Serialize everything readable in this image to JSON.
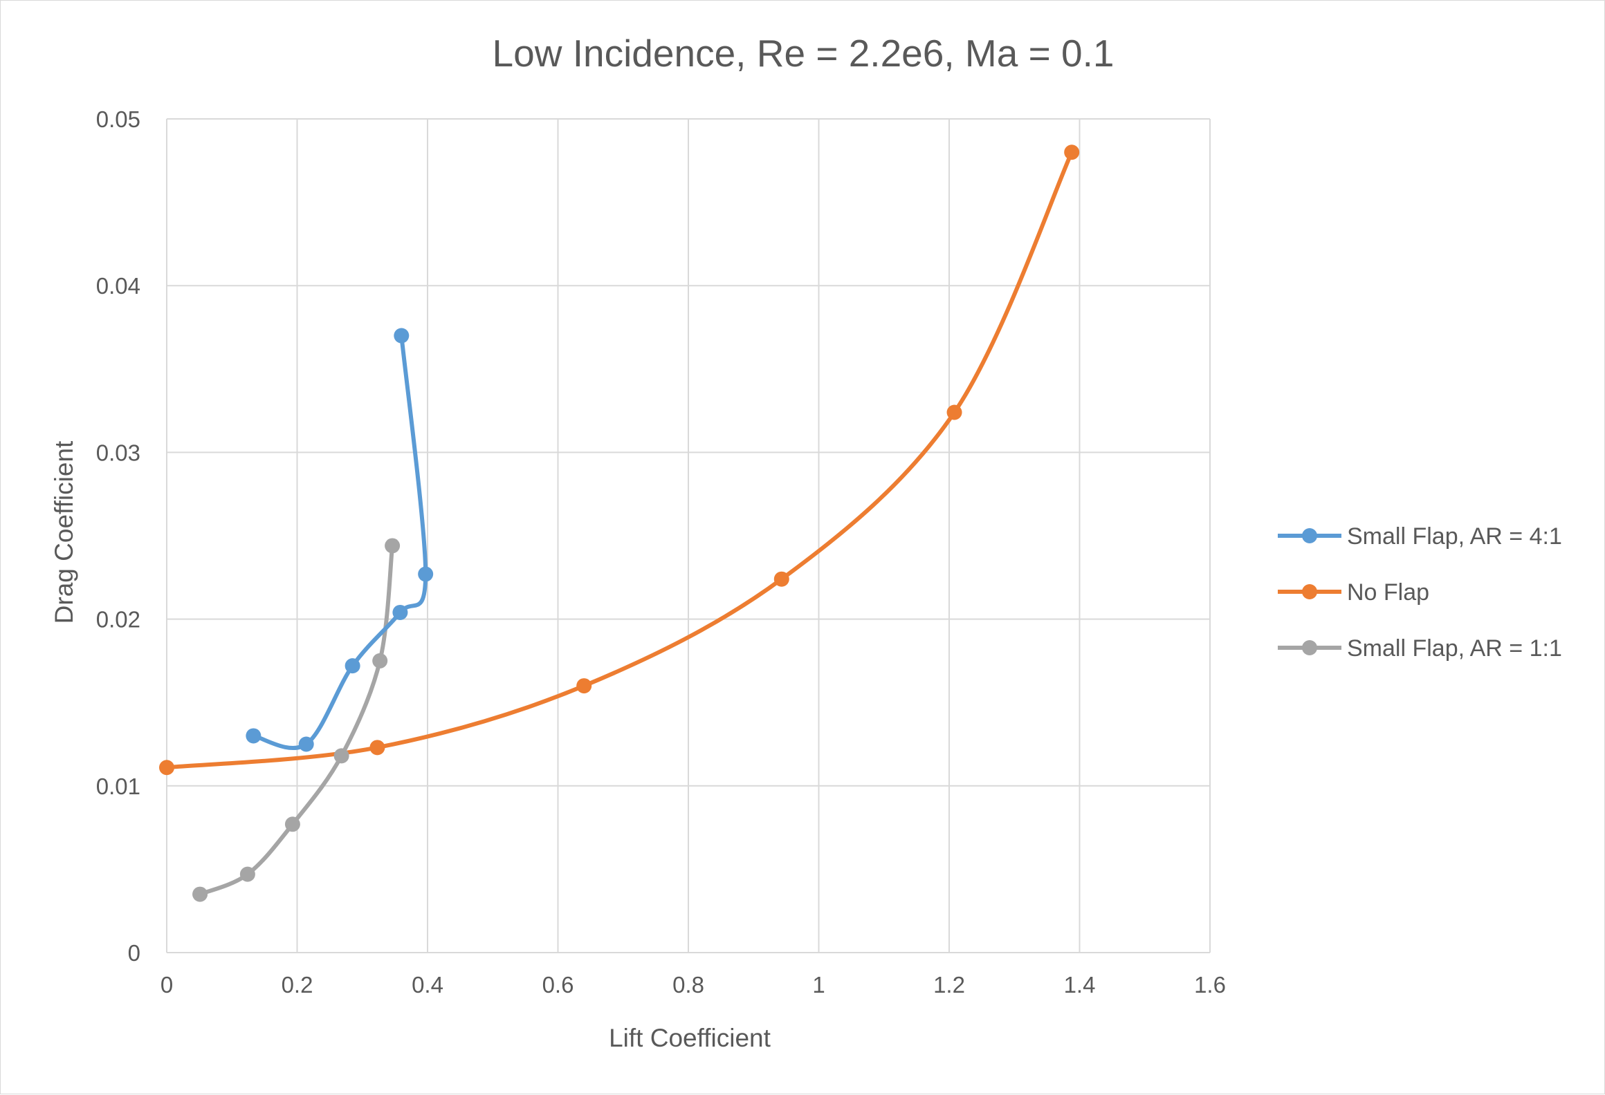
{
  "chart_data": {
    "type": "scatter",
    "title": "Low Incidence, Re = 2.2e6, Ma = 0.1",
    "xlabel": "Lift Coefficient",
    "ylabel": "Drag Coefficient",
    "xlim": [
      0,
      1.6
    ],
    "ylim": [
      0,
      0.05
    ],
    "x_ticks": [
      "0",
      "0.2",
      "0.4",
      "0.6",
      "0.8",
      "1",
      "1.2",
      "1.4",
      "1.6"
    ],
    "y_ticks": [
      "0",
      "0.01",
      "0.02",
      "0.03",
      "0.04",
      "0.05"
    ],
    "grid": true,
    "legend_position": "right",
    "smoothed_lines": true,
    "series": [
      {
        "name": "Small Flap, AR = 4:1",
        "color": "#5b9bd5",
        "points": [
          {
            "x": 0.133,
            "y": 0.013
          },
          {
            "x": 0.214,
            "y": 0.0125
          },
          {
            "x": 0.285,
            "y": 0.0172
          },
          {
            "x": 0.358,
            "y": 0.0204
          },
          {
            "x": 0.397,
            "y": 0.0227
          },
          {
            "x": 0.36,
            "y": 0.037
          }
        ]
      },
      {
        "name": "No Flap",
        "color": "#ed7d31",
        "points": [
          {
            "x": 0.0,
            "y": 0.0111
          },
          {
            "x": 0.323,
            "y": 0.0123
          },
          {
            "x": 0.64,
            "y": 0.016
          },
          {
            "x": 0.943,
            "y": 0.0224
          },
          {
            "x": 1.208,
            "y": 0.0324
          },
          {
            "x": 1.388,
            "y": 0.048
          }
        ]
      },
      {
        "name": "Small Flap, AR = 1:1",
        "color": "#a5a5a5",
        "points": [
          {
            "x": 0.051,
            "y": 0.0035
          },
          {
            "x": 0.124,
            "y": 0.0047
          },
          {
            "x": 0.193,
            "y": 0.0077
          },
          {
            "x": 0.268,
            "y": 0.0118
          },
          {
            "x": 0.327,
            "y": 0.0175
          },
          {
            "x": 0.346,
            "y": 0.0244
          }
        ]
      }
    ]
  }
}
